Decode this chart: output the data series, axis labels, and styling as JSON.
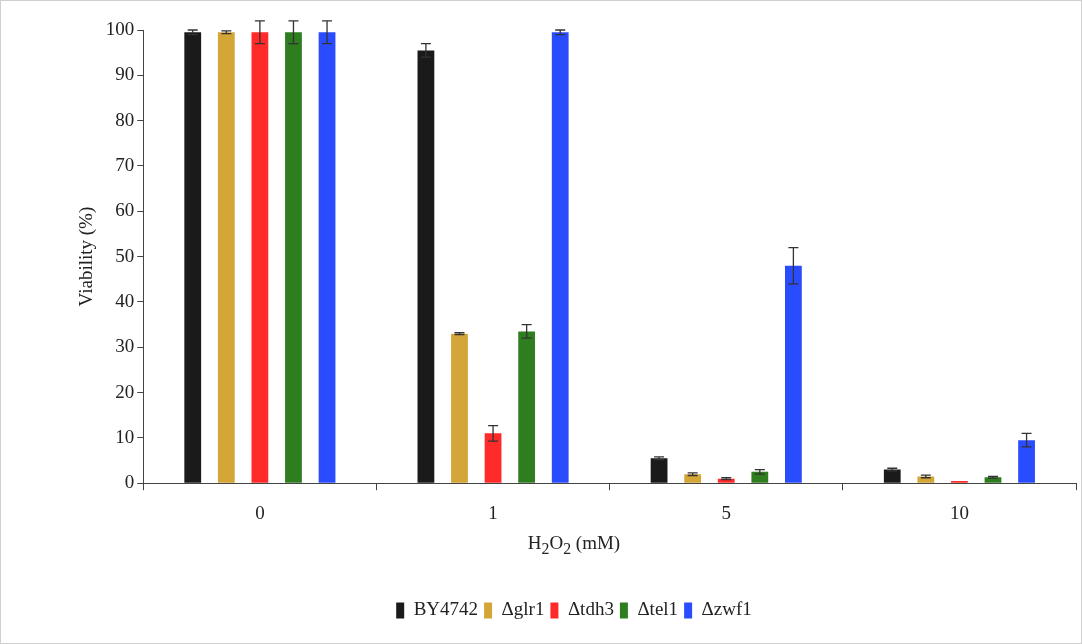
{
  "chart_data": {
    "type": "bar",
    "xlabel": "H$_{2}$O$_{2}$ (mM)",
    "ylabel": "Viability (%)",
    "categories": [
      "0",
      "1",
      "5",
      "10"
    ],
    "series": [
      {
        "name": "BY4742",
        "color": "#1a1a1a",
        "values": [
          99.5,
          95.5,
          5.5,
          3
        ],
        "errors": [
          0.5,
          1.5,
          0.3,
          0.3
        ]
      },
      {
        "name": "Δglr1",
        "color": "#d4a537",
        "values": [
          99.5,
          33,
          2,
          1.5
        ],
        "errors": [
          0.3,
          0.2,
          0.3,
          0.3
        ]
      },
      {
        "name": "Δtdh3",
        "color": "#ff2a2a",
        "values": [
          99.5,
          11,
          1,
          0.5
        ],
        "errors": [
          2.5,
          1.7,
          0.2,
          null
        ]
      },
      {
        "name": "Δtel1",
        "color": "#2e7d1e",
        "values": [
          99.5,
          33.5,
          2.5,
          1.3
        ],
        "errors": [
          2.5,
          1.5,
          0.5,
          0.2
        ]
      },
      {
        "name": "Δzwf1",
        "color": "#2a4cff",
        "values": [
          99.5,
          99.5,
          48,
          9.5
        ],
        "errors": [
          2.5,
          0.5,
          4,
          1.5
        ]
      }
    ],
    "ylim": [
      0,
      100
    ],
    "yticks": [
      0,
      10,
      20,
      30,
      40,
      50,
      60,
      70,
      80,
      90,
      100
    ],
    "grid": false,
    "legend": "bottom"
  }
}
